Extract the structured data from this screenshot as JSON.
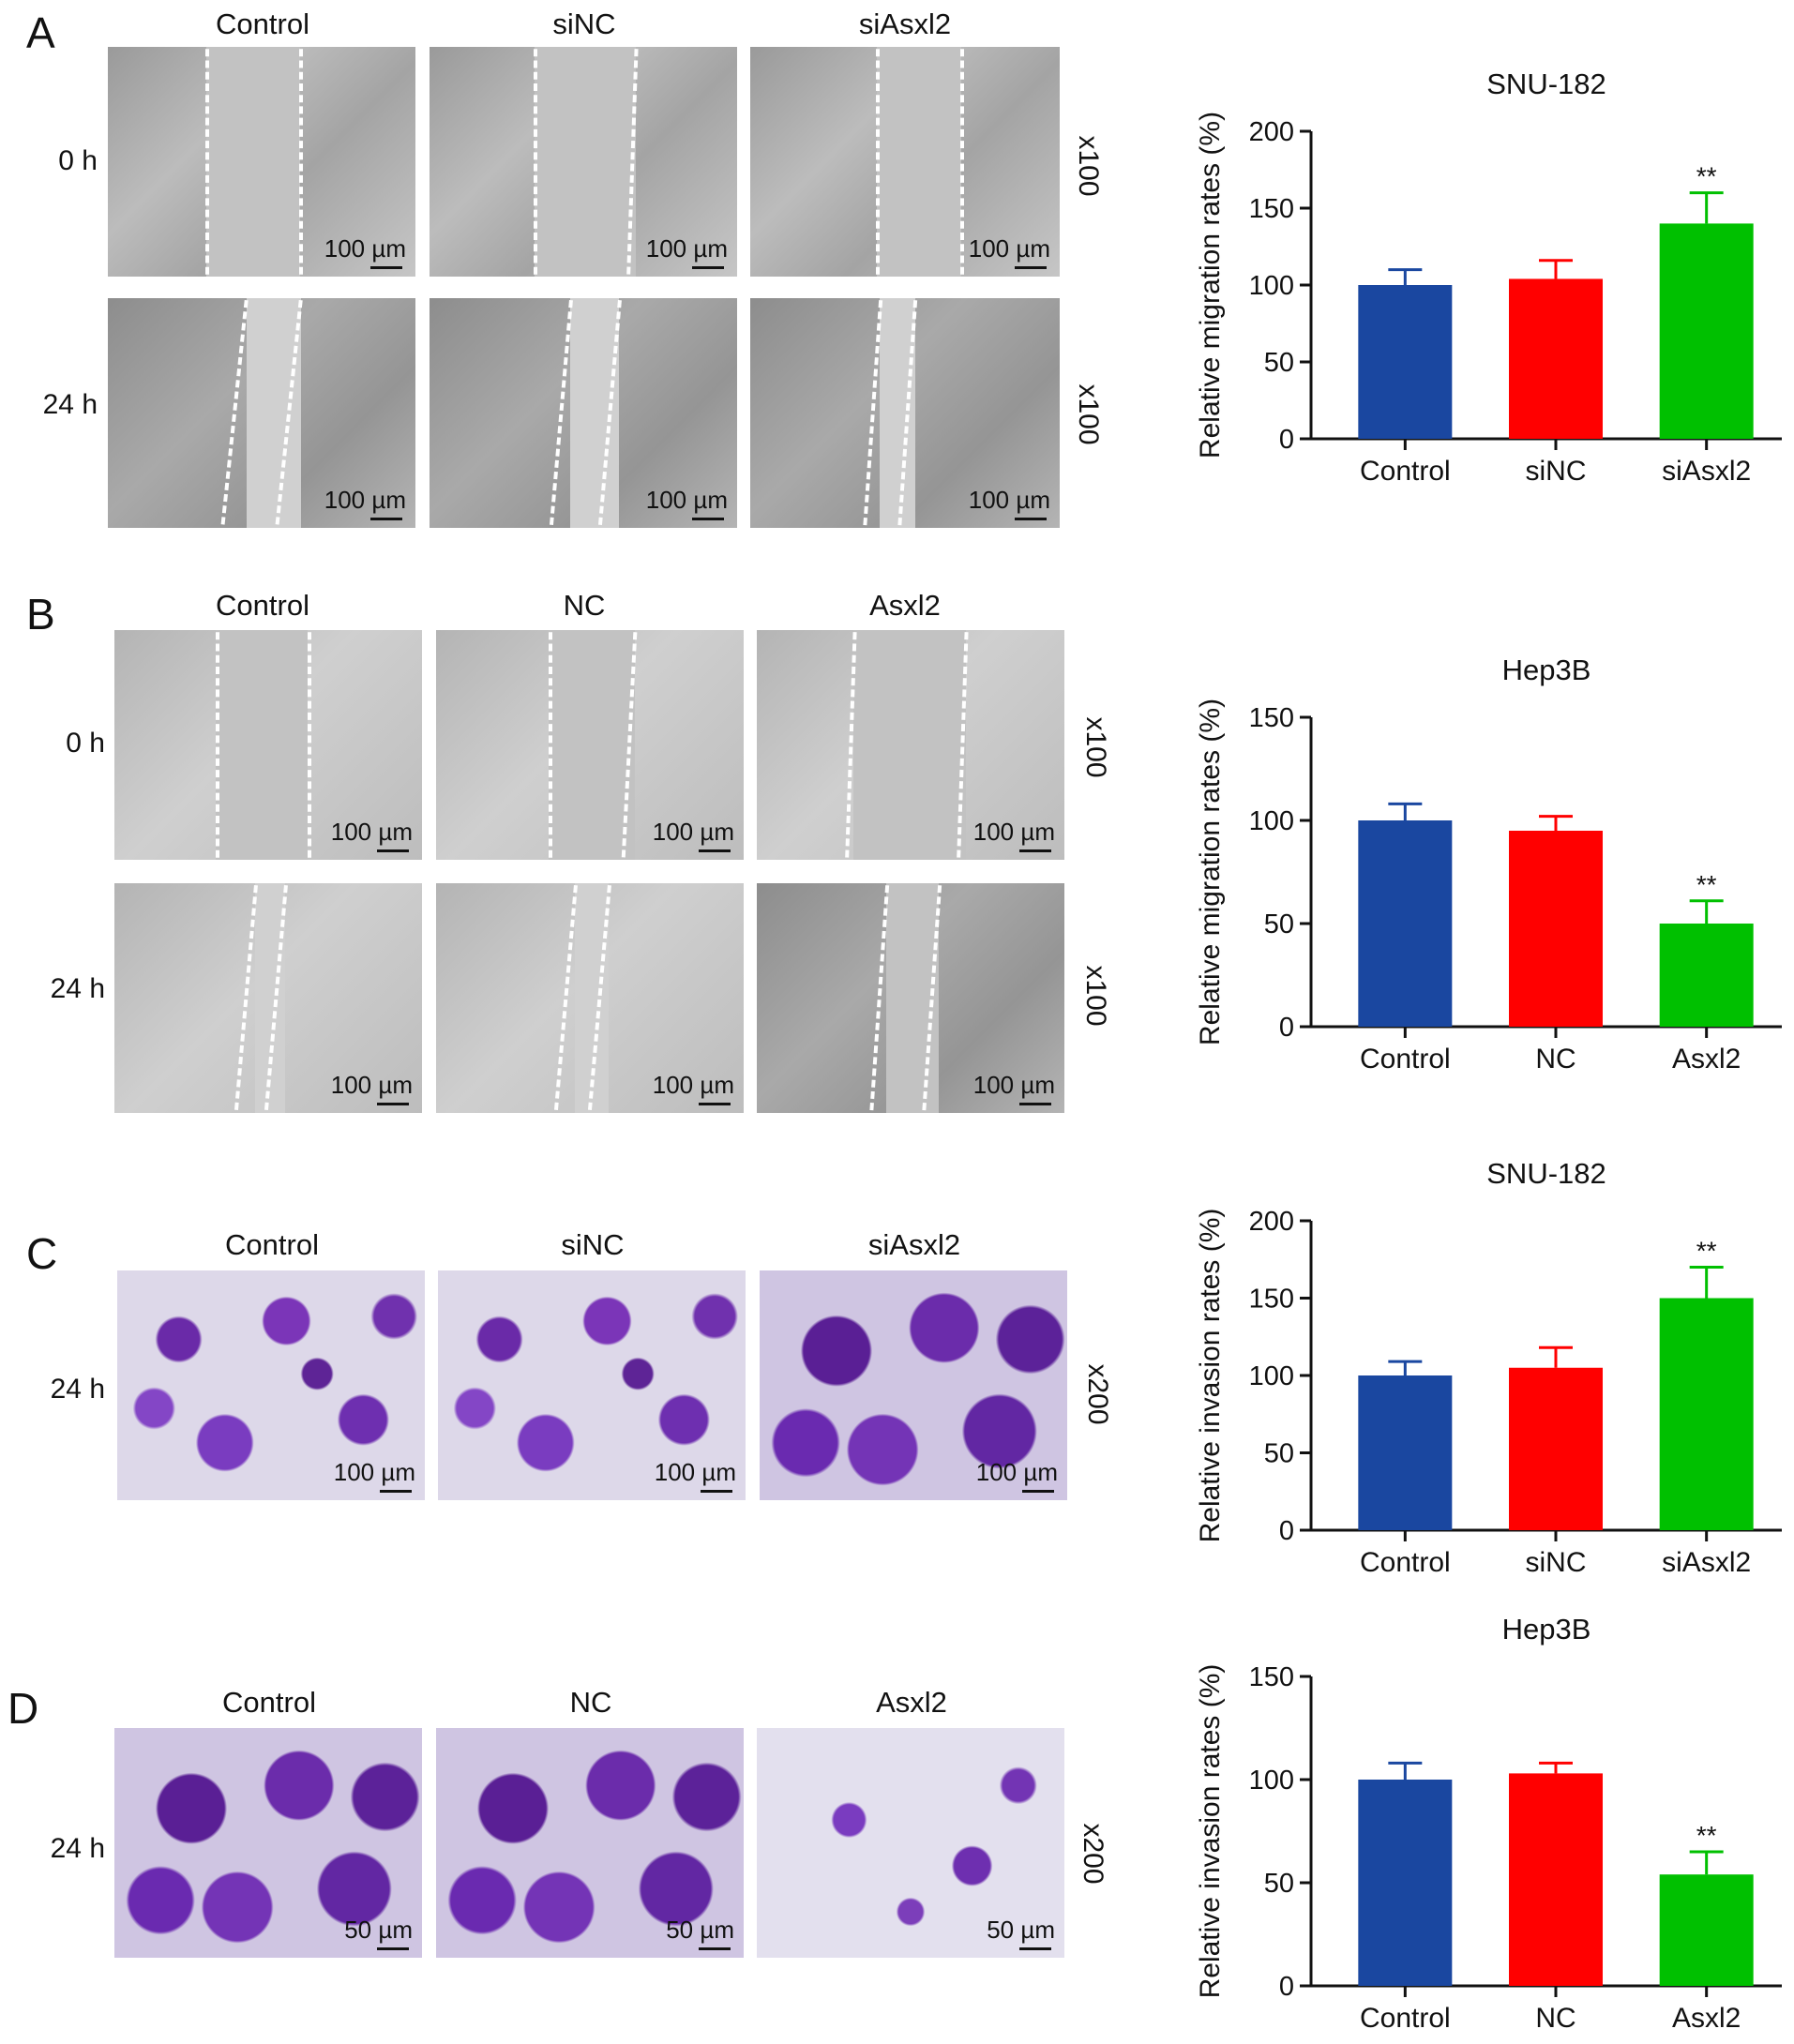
{
  "panels": [
    {
      "letter": "A",
      "columns": [
        "Control",
        "siNC",
        "siAsxl2"
      ],
      "rows": [
        {
          "label": "0 h",
          "magnification": "x100",
          "scale_labels": [
            "100 µm",
            "100 µm",
            "100 µm"
          ]
        },
        {
          "label": "24 h",
          "magnification": "x100",
          "scale_labels": [
            "100 µm",
            "100 µm",
            "100 µm"
          ]
        }
      ]
    },
    {
      "letter": "B",
      "columns": [
        "Control",
        "NC",
        "Asxl2"
      ],
      "rows": [
        {
          "label": "0 h",
          "magnification": "x100",
          "scale_labels": [
            "100 µm",
            "100 µm",
            "100 µm"
          ]
        },
        {
          "label": "24 h",
          "magnification": "x100",
          "scale_labels": [
            "100 µm",
            "100 µm",
            "100 µm"
          ]
        }
      ]
    },
    {
      "letter": "C",
      "columns": [
        "Control",
        "siNC",
        "siAsxl2"
      ],
      "rows": [
        {
          "label": "24 h",
          "magnification": "x200",
          "scale_labels": [
            "100 µm",
            "100 µm",
            "100 µm"
          ]
        }
      ]
    },
    {
      "letter": "D",
      "columns": [
        "Control",
        "NC",
        "Asxl2"
      ],
      "rows": [
        {
          "label": "24 h",
          "magnification": "x200",
          "scale_labels": [
            "50 µm",
            "50 µm",
            "50 µm"
          ]
        }
      ]
    }
  ],
  "chart_data": [
    {
      "type": "bar",
      "title": "SNU-182",
      "ylabel": "Relative migration rates (%)",
      "categories": [
        "Control",
        "siNC",
        "siAsxl2"
      ],
      "values": [
        100,
        104,
        140
      ],
      "errors": [
        10,
        12,
        20
      ],
      "significance": [
        "",
        "",
        "**"
      ],
      "colors": [
        "#1a47a0",
        "#ff0000",
        "#00c000"
      ],
      "ylim": [
        0,
        200
      ],
      "yticks": [
        0,
        50,
        100,
        150,
        200
      ]
    },
    {
      "type": "bar",
      "title": "Hep3B",
      "ylabel": "Relative migration rates (%)",
      "categories": [
        "Control",
        "NC",
        "Asxl2"
      ],
      "values": [
        100,
        95,
        50
      ],
      "errors": [
        8,
        7,
        11
      ],
      "significance": [
        "",
        "",
        "**"
      ],
      "colors": [
        "#1a47a0",
        "#ff0000",
        "#00c000"
      ],
      "ylim": [
        0,
        150
      ],
      "yticks": [
        0,
        50,
        100,
        150
      ]
    },
    {
      "type": "bar",
      "title": "SNU-182",
      "ylabel": "Relative invasion rates (%)",
      "categories": [
        "Control",
        "siNC",
        "siAsxl2"
      ],
      "values": [
        100,
        105,
        150
      ],
      "errors": [
        9,
        13,
        20
      ],
      "significance": [
        "",
        "",
        "**"
      ],
      "colors": [
        "#1a47a0",
        "#ff0000",
        "#00c000"
      ],
      "ylim": [
        0,
        200
      ],
      "yticks": [
        0,
        50,
        100,
        150,
        200
      ]
    },
    {
      "type": "bar",
      "title": "Hep3B",
      "ylabel": "Relative invasion rates (%)",
      "categories": [
        "Control",
        "NC",
        "Asxl2"
      ],
      "values": [
        100,
        103,
        54
      ],
      "errors": [
        8,
        5,
        11
      ],
      "significance": [
        "",
        "",
        "**"
      ],
      "colors": [
        "#1a47a0",
        "#ff0000",
        "#00c000"
      ],
      "ylim": [
        0,
        150
      ],
      "yticks": [
        0,
        50,
        100,
        150
      ]
    }
  ]
}
